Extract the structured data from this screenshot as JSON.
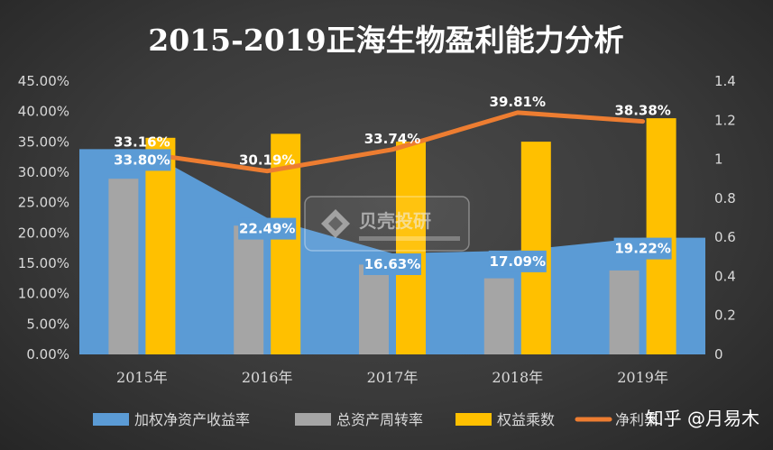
{
  "chart_data": {
    "type": "bar",
    "title": "2015-2019正海生物盈利能力分析",
    "categories": [
      "2015年",
      "2016年",
      "2017年",
      "2018年",
      "2019年"
    ],
    "y_left": {
      "range": [
        0,
        0.45
      ],
      "ticks": [
        "0.00%",
        "5.00%",
        "10.00%",
        "15.00%",
        "20.00%",
        "25.00%",
        "30.00%",
        "35.00%",
        "40.00%",
        "45.00%"
      ]
    },
    "y_right": {
      "range": [
        0,
        1.4
      ],
      "ticks": [
        "0",
        "0.2",
        "0.4",
        "0.6",
        "0.8",
        "1",
        "1.2",
        "1.4"
      ]
    },
    "series": [
      {
        "name": "加权净资产收益率",
        "kind": "area",
        "axis": "left",
        "color": "#5b9bd5",
        "values": [
          0.338,
          0.2249,
          0.1663,
          0.1709,
          0.1922
        ],
        "labels": [
          "33.80%",
          "22.49%",
          "16.63%",
          "17.09%",
          "19.22%"
        ]
      },
      {
        "name": "总资产周转率",
        "kind": "bar",
        "axis": "right",
        "color": "#a5a5a5",
        "values": [
          0.9,
          0.66,
          0.46,
          0.39,
          0.43
        ]
      },
      {
        "name": "权益乘数",
        "kind": "bar",
        "axis": "right",
        "color": "#ffc000",
        "values": [
          1.11,
          1.13,
          1.09,
          1.09,
          1.21
        ]
      },
      {
        "name": "净利率",
        "kind": "line",
        "axis": "left",
        "color": "#ed7d31",
        "values": [
          0.3316,
          0.3019,
          0.3374,
          0.3981,
          0.3838
        ],
        "labels": [
          "33.16%",
          "30.19%",
          "33.74%",
          "39.81%",
          "38.38%"
        ]
      }
    ],
    "legend": "bottom",
    "grid": false
  },
  "watermark": {
    "brand": "贝壳投研"
  },
  "credit": "知乎 @月易木"
}
